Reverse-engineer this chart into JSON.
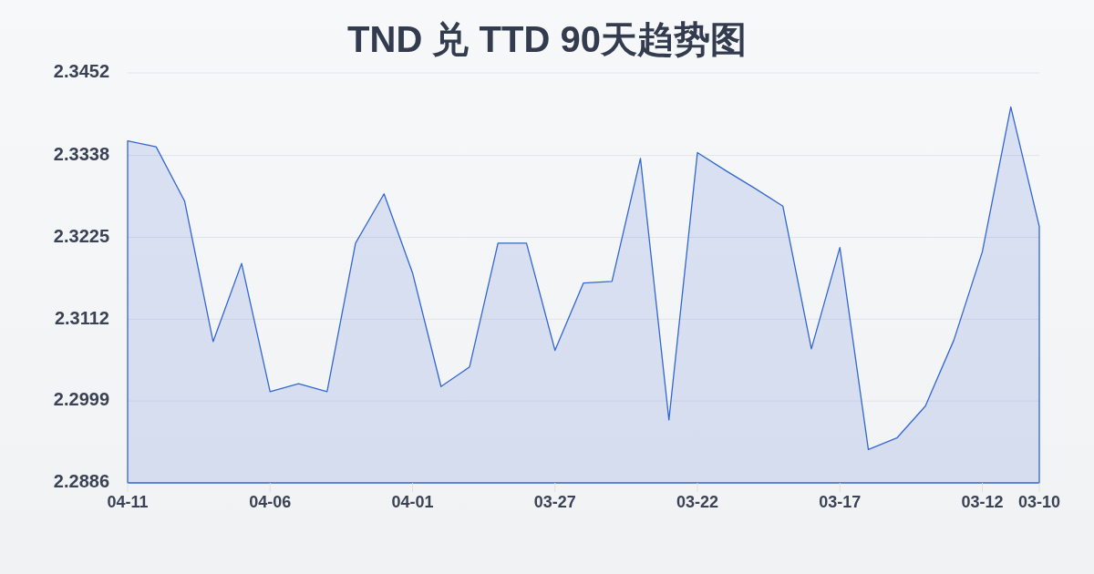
{
  "chart_data": {
    "type": "area",
    "title": "TND 兑 TTD 90天趋势图",
    "categories": [
      "04-11",
      null,
      null,
      null,
      null,
      "04-06",
      null,
      null,
      null,
      null,
      "04-01",
      null,
      null,
      null,
      null,
      "03-27",
      null,
      null,
      null,
      null,
      "03-22",
      null,
      null,
      null,
      null,
      "03-17",
      null,
      null,
      null,
      null,
      "03-12",
      null,
      "03-10"
    ],
    "values": [
      2.3358,
      2.335,
      2.3275,
      2.3081,
      2.3189,
      2.3012,
      2.3023,
      2.3012,
      2.3217,
      2.3285,
      2.3176,
      2.3019,
      2.3046,
      2.3217,
      2.3217,
      2.3069,
      2.3162,
      2.3164,
      2.3334,
      2.2973,
      2.3342,
      2.3317,
      2.3293,
      2.3268,
      2.3071,
      2.3211,
      2.2932,
      2.2948,
      2.2992,
      2.3083,
      2.3205,
      2.3405,
      2.324
    ],
    "color": "#3367d1",
    "ylim": [
      2.2886,
      2.3452
    ],
    "yticks": [
      2.2886,
      2.2999,
      2.3112,
      2.3225,
      2.3338,
      2.3452
    ],
    "grid": "y"
  }
}
